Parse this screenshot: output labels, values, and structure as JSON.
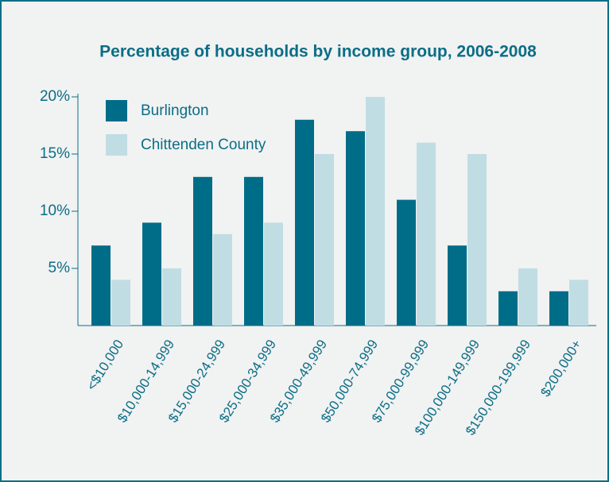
{
  "chart_data": {
    "type": "bar",
    "title": "Percentage of households by income group, 2006-2008",
    "categories": [
      "<$10,000",
      "$10,000-14,999",
      "$15,000-24,999",
      "$25,000-34,999",
      "$35,000-49,999",
      "$50,000-74,999",
      "$75,000-99,999",
      "$100,000-149,999",
      "$150,000-199,999",
      "$200,000+"
    ],
    "series": [
      {
        "name": "Burlington",
        "color": "#006d88",
        "values": [
          7,
          9,
          13,
          13,
          18,
          17,
          11,
          7,
          3,
          3
        ]
      },
      {
        "name": "Chittenden County",
        "color": "#c0dde3",
        "values": [
          4,
          5,
          8,
          9,
          15,
          20,
          16,
          15,
          5,
          4
        ]
      }
    ],
    "ylim": [
      0,
      20
    ],
    "yticks": [
      {
        "value": 5,
        "label": "5%"
      },
      {
        "value": 10,
        "label": "10%"
      },
      {
        "value": 15,
        "label": "15%"
      },
      {
        "value": 20,
        "label": "20%"
      }
    ],
    "legend": "upper-left"
  }
}
